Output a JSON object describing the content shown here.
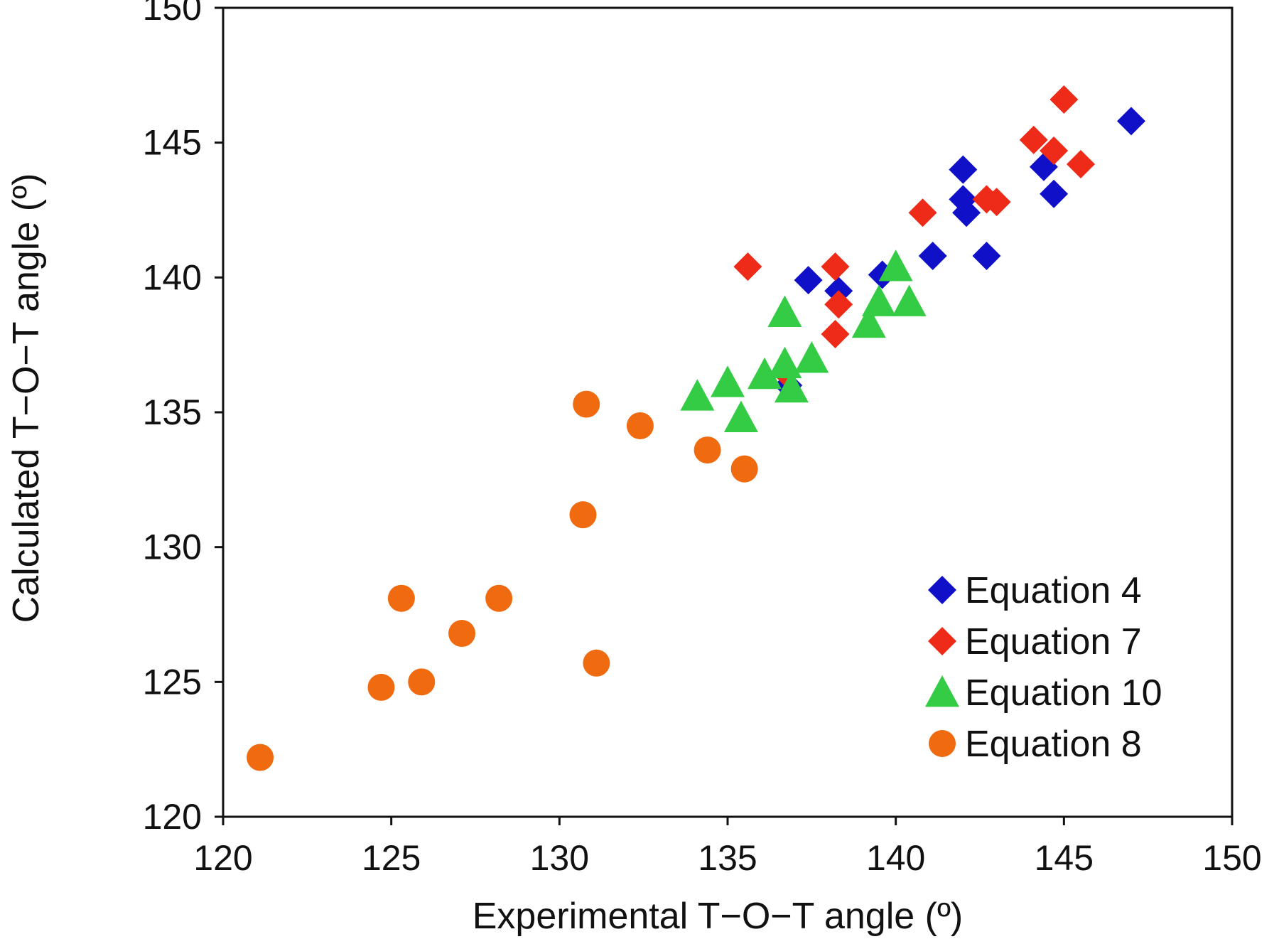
{
  "chart_data": {
    "type": "scatter",
    "xlabel": "Experimental  T−O−T angle (º)",
    "ylabel": "Calculated  T−O−T angle (º)",
    "xlim": [
      120,
      150
    ],
    "ylim": [
      120,
      150
    ],
    "x_ticks": [
      "120",
      "125",
      "130",
      "135",
      "140",
      "145",
      "150"
    ],
    "y_ticks": [
      "120",
      "125",
      "130",
      "135",
      "140",
      "145",
      "150"
    ],
    "grid": false,
    "legend_position": "bottom-right",
    "series": [
      {
        "name": "Equation 4",
        "marker": "diamond",
        "color": "#1010c8",
        "points": [
          [
            137.4,
            139.9
          ],
          [
            138.3,
            139.5
          ],
          [
            139.6,
            140.1
          ],
          [
            141.1,
            140.8
          ],
          [
            142.0,
            144.0
          ],
          [
            142.0,
            142.9
          ],
          [
            142.1,
            142.4
          ],
          [
            142.7,
            140.8
          ],
          [
            144.4,
            144.1
          ],
          [
            144.7,
            143.1
          ],
          [
            147.0,
            145.8
          ],
          [
            136.8,
            136.0
          ]
        ]
      },
      {
        "name": "Equation 7",
        "marker": "diamond",
        "color": "#ee2a18",
        "points": [
          [
            135.6,
            140.4
          ],
          [
            138.2,
            140.4
          ],
          [
            138.3,
            139.0
          ],
          [
            138.2,
            137.9
          ],
          [
            140.8,
            142.4
          ],
          [
            142.7,
            142.9
          ],
          [
            143.0,
            142.8
          ],
          [
            144.1,
            145.1
          ],
          [
            144.7,
            144.7
          ],
          [
            145.0,
            146.6
          ],
          [
            145.5,
            144.2
          ],
          [
            136.7,
            136.5
          ]
        ]
      },
      {
        "name": "Equation 10",
        "marker": "triangle",
        "color": "#33cc44",
        "points": [
          [
            134.1,
            135.6
          ],
          [
            135.0,
            136.1
          ],
          [
            135.4,
            134.8
          ],
          [
            136.1,
            136.4
          ],
          [
            136.7,
            136.8
          ],
          [
            136.9,
            135.9
          ],
          [
            136.7,
            138.7
          ],
          [
            137.5,
            137.0
          ],
          [
            139.2,
            138.3
          ],
          [
            139.5,
            139.1
          ],
          [
            140.0,
            140.4
          ],
          [
            140.4,
            139.1
          ]
        ]
      },
      {
        "name": "Equation 8",
        "marker": "circle",
        "color": "#f06a10",
        "points": [
          [
            121.1,
            122.2
          ],
          [
            124.7,
            124.8
          ],
          [
            125.3,
            128.1
          ],
          [
            125.9,
            125.0
          ],
          [
            127.1,
            126.8
          ],
          [
            128.2,
            128.1
          ],
          [
            130.7,
            131.2
          ],
          [
            130.8,
            135.3
          ],
          [
            131.1,
            125.7
          ],
          [
            132.4,
            134.5
          ],
          [
            134.4,
            133.6
          ],
          [
            135.5,
            132.9
          ]
        ]
      }
    ]
  }
}
